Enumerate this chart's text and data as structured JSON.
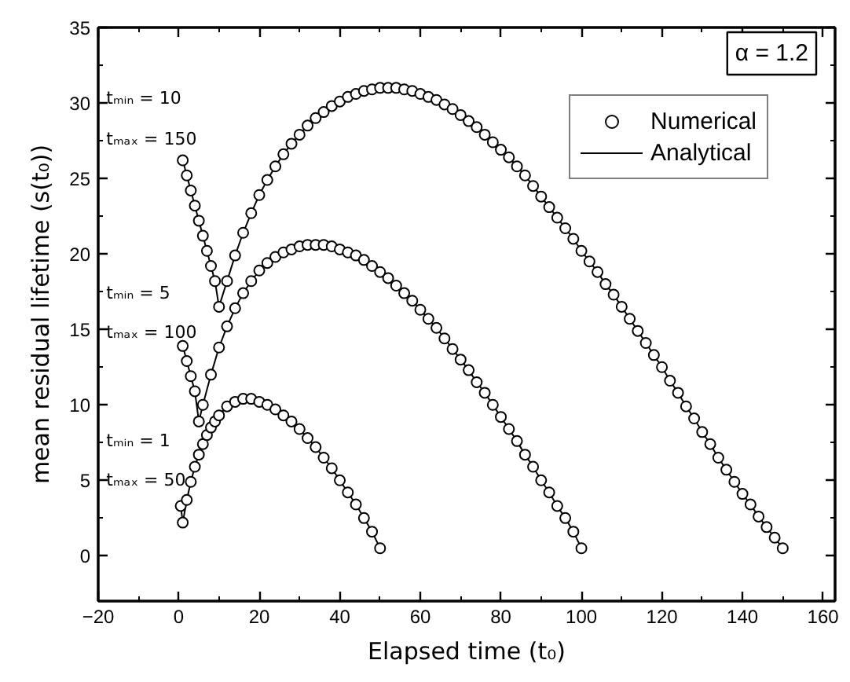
{
  "chart_data": {
    "type": "scatter",
    "xlabel": "Elapsed time (t₀)",
    "ylabel": "mean residual lifetime (s(t₀))",
    "xlim": [
      -20,
      163
    ],
    "ylim": [
      -3,
      35
    ],
    "xticks": [
      -20,
      0,
      20,
      40,
      60,
      80,
      100,
      120,
      140,
      160
    ],
    "yticks": [
      0,
      5,
      10,
      15,
      20,
      25,
      30,
      35
    ],
    "grid": false,
    "legend": "top right",
    "annotations": [
      "tₘᵢₙ = 10",
      "tₘₐₓ = 150",
      "tₘᵢₙ = 5",
      "tₘₐₓ = 100",
      "tₘᵢₙ = 1",
      "tₘₐₓ = 50",
      "α = 1.2"
    ],
    "series": [
      {
        "name": "Numerical",
        "marker": "circle",
        "color": "#000000",
        "x": [
          0.5,
          1,
          2,
          3,
          4,
          5,
          6,
          7,
          8,
          9,
          10,
          12,
          14,
          16,
          18,
          20,
          22,
          24,
          26,
          28,
          30,
          32,
          34,
          36,
          38,
          40,
          42,
          44,
          46,
          48,
          50
        ],
        "values": [
          3.3,
          2.2,
          3.7,
          4.9,
          5.9,
          6.7,
          7.4,
          8.0,
          8.5,
          8.9,
          9.3,
          9.9,
          10.2,
          10.4,
          10.4,
          10.2,
          10.0,
          9.7,
          9.3,
          8.9,
          8.4,
          7.8,
          7.2,
          6.5,
          5.8,
          5.0,
          4.2,
          3.4,
          2.5,
          1.6,
          0.5
        ]
      },
      {
        "marker": "circle",
        "color": "#000000",
        "x": [
          1,
          2,
          3,
          4,
          5,
          6,
          8,
          10,
          12,
          14,
          16,
          18,
          20,
          22,
          24,
          26,
          28,
          30,
          32,
          34,
          36,
          38,
          40,
          42,
          44,
          46,
          48,
          50,
          52,
          54,
          56,
          58,
          60,
          62,
          64,
          66,
          68,
          70,
          72,
          74,
          76,
          78,
          80,
          82,
          84,
          86,
          88,
          90,
          92,
          94,
          96,
          98,
          100
        ],
        "values": [
          13.9,
          12.9,
          11.9,
          10.9,
          8.9,
          10.0,
          12.0,
          13.8,
          15.2,
          16.4,
          17.4,
          18.2,
          18.9,
          19.4,
          19.8,
          20.1,
          20.3,
          20.5,
          20.6,
          20.6,
          20.6,
          20.5,
          20.3,
          20.1,
          19.9,
          19.6,
          19.2,
          18.8,
          18.4,
          17.9,
          17.4,
          16.9,
          16.3,
          15.7,
          15.1,
          14.4,
          13.7,
          13.0,
          12.3,
          11.5,
          10.8,
          10.0,
          9.2,
          8.4,
          7.6,
          6.7,
          5.9,
          5.0,
          4.2,
          3.3,
          2.5,
          1.6,
          0.5
        ]
      },
      {
        "marker": "circle",
        "color": "#000000",
        "x": [
          1,
          2,
          3,
          4,
          5,
          6,
          7,
          8,
          9,
          10,
          12,
          14,
          16,
          18,
          20,
          22,
          24,
          26,
          28,
          30,
          32,
          34,
          36,
          38,
          40,
          42,
          44,
          46,
          48,
          50,
          52,
          54,
          56,
          58,
          60,
          62,
          64,
          66,
          68,
          70,
          72,
          74,
          76,
          78,
          80,
          82,
          84,
          86,
          88,
          90,
          92,
          94,
          96,
          98,
          100,
          102,
          104,
          106,
          108,
          110,
          112,
          114,
          116,
          118,
          120,
          122,
          124,
          126,
          128,
          130,
          132,
          134,
          136,
          138,
          140,
          142,
          144,
          146,
          148,
          150
        ],
        "values": [
          26.2,
          25.2,
          24.2,
          23.2,
          22.2,
          21.2,
          20.2,
          19.2,
          18.2,
          16.5,
          18.2,
          19.9,
          21.4,
          22.7,
          23.9,
          24.9,
          25.8,
          26.6,
          27.3,
          27.9,
          28.5,
          29.0,
          29.4,
          29.8,
          30.1,
          30.4,
          30.6,
          30.8,
          30.9,
          31.0,
          31.0,
          31.0,
          30.9,
          30.8,
          30.6,
          30.4,
          30.2,
          29.9,
          29.6,
          29.2,
          28.8,
          28.4,
          27.9,
          27.4,
          26.9,
          26.4,
          25.8,
          25.2,
          24.5,
          23.8,
          23.1,
          22.4,
          21.7,
          21.0,
          20.2,
          19.5,
          18.8,
          18.0,
          17.3,
          16.5,
          15.7,
          14.9,
          14.1,
          13.3,
          12.5,
          11.6,
          10.8,
          9.9,
          9.1,
          8.2,
          7.4,
          6.5,
          5.7,
          4.9,
          4.1,
          3.4,
          2.6,
          1.9,
          1.2,
          0.5
        ]
      },
      {
        "name": "Analytical",
        "type": "line",
        "line_style": "solid",
        "color": "#000000",
        "x": [
          0.5,
          1,
          2,
          3,
          4,
          5,
          6,
          7,
          8,
          9,
          10,
          12,
          14,
          16,
          18,
          20,
          22,
          24,
          26,
          28,
          30,
          32,
          34,
          36,
          38,
          40,
          42,
          44,
          46,
          48,
          50
        ],
        "values": [
          3.3,
          2.2,
          3.7,
          4.9,
          5.9,
          6.7,
          7.4,
          8.0,
          8.5,
          8.9,
          9.3,
          9.9,
          10.2,
          10.4,
          10.4,
          10.2,
          10.0,
          9.7,
          9.3,
          8.9,
          8.4,
          7.8,
          7.2,
          6.5,
          5.8,
          5.0,
          4.2,
          3.4,
          2.5,
          1.6,
          0.5
        ]
      },
      {
        "type": "line",
        "line_style": "solid",
        "color": "#000000",
        "x": [
          1,
          2,
          3,
          4,
          5,
          6,
          8,
          10,
          12,
          14,
          16,
          18,
          20,
          22,
          24,
          26,
          28,
          30,
          32,
          34,
          36,
          38,
          40,
          42,
          44,
          46,
          48,
          50,
          52,
          54,
          56,
          58,
          60,
          62,
          64,
          66,
          68,
          70,
          72,
          74,
          76,
          78,
          80,
          82,
          84,
          86,
          88,
          90,
          92,
          94,
          96,
          98,
          100
        ],
        "values": [
          13.9,
          12.9,
          11.9,
          10.9,
          8.9,
          10.0,
          12.0,
          13.8,
          15.2,
          16.4,
          17.4,
          18.2,
          18.9,
          19.4,
          19.8,
          20.1,
          20.3,
          20.5,
          20.6,
          20.6,
          20.6,
          20.5,
          20.3,
          20.1,
          19.9,
          19.6,
          19.2,
          18.8,
          18.4,
          17.9,
          17.4,
          16.9,
          16.3,
          15.7,
          15.1,
          14.4,
          13.7,
          13.0,
          12.3,
          11.5,
          10.8,
          10.0,
          9.2,
          8.4,
          7.6,
          6.7,
          5.9,
          5.0,
          4.2,
          3.3,
          2.5,
          1.6,
          0.5
        ]
      },
      {
        "type": "line",
        "line_style": "solid",
        "color": "#000000",
        "x": [
          1,
          2,
          3,
          4,
          5,
          6,
          7,
          8,
          9,
          10,
          12,
          14,
          16,
          18,
          20,
          22,
          24,
          26,
          28,
          30,
          32,
          34,
          36,
          38,
          40,
          42,
          44,
          46,
          48,
          50,
          52,
          54,
          56,
          58,
          60,
          62,
          64,
          66,
          68,
          70,
          72,
          74,
          76,
          78,
          80,
          82,
          84,
          86,
          88,
          90,
          92,
          94,
          96,
          98,
          100,
          102,
          104,
          106,
          108,
          110,
          112,
          114,
          116,
          118,
          120,
          122,
          124,
          126,
          128,
          130,
          132,
          134,
          136,
          138,
          140,
          142,
          144,
          146,
          148,
          150
        ],
        "values": [
          26.2,
          25.2,
          24.2,
          23.2,
          22.2,
          21.2,
          20.2,
          19.2,
          18.2,
          16.5,
          18.2,
          19.9,
          21.4,
          22.7,
          23.9,
          24.9,
          25.8,
          26.6,
          27.3,
          27.9,
          28.5,
          29.0,
          29.4,
          29.8,
          30.1,
          30.4,
          30.6,
          30.8,
          30.9,
          31.0,
          31.0,
          31.0,
          30.9,
          30.8,
          30.6,
          30.4,
          30.2,
          29.9,
          29.6,
          29.2,
          28.8,
          28.4,
          27.9,
          27.4,
          26.9,
          26.4,
          25.8,
          25.2,
          24.5,
          23.8,
          23.1,
          22.4,
          21.7,
          21.0,
          20.2,
          19.5,
          18.8,
          18.0,
          17.3,
          16.5,
          15.7,
          14.9,
          14.1,
          13.3,
          12.5,
          11.6,
          10.8,
          9.9,
          9.1,
          8.2,
          7.4,
          6.5,
          5.7,
          4.9,
          4.1,
          3.4,
          2.6,
          1.9,
          1.2,
          0.5
        ]
      }
    ]
  }
}
